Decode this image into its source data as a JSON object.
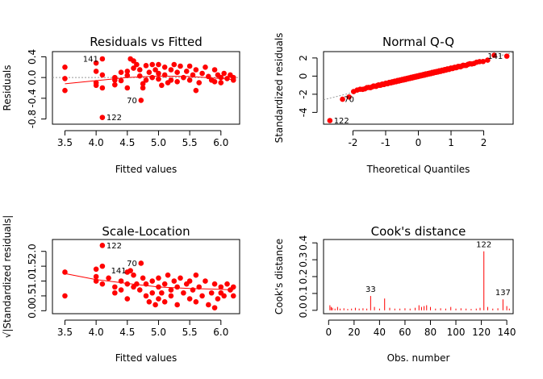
{
  "chart_data": [
    {
      "id": "resid",
      "type": "scatter",
      "title": "Residuals vs Fitted",
      "xlabel": "Fitted values",
      "ylabel": "Residuals",
      "xlim": [
        3.3,
        6.3
      ],
      "ylim": [
        -0.9,
        0.5
      ],
      "xticks": [
        "3.5",
        "4.0",
        "4.5",
        "5.0",
        "5.5",
        "6.0"
      ],
      "yticks": [
        "-0.8",
        "-0.4",
        "0.0",
        "0.4"
      ],
      "reference_line": 0,
      "smooth": [
        [
          3.5,
          -0.12
        ],
        [
          4.0,
          -0.06
        ],
        [
          4.5,
          0.0
        ],
        [
          5.0,
          0.03
        ],
        [
          5.5,
          0.02
        ],
        [
          6.0,
          -0.02
        ],
        [
          6.2,
          -0.04
        ]
      ],
      "points": [
        [
          3.5,
          0.2
        ],
        [
          3.5,
          -0.25
        ],
        [
          3.5,
          -0.02
        ],
        [
          4.0,
          0.28
        ],
        [
          4.0,
          0.12
        ],
        [
          4.0,
          -0.1
        ],
        [
          4.0,
          -0.15
        ],
        [
          4.1,
          0.05
        ],
        [
          4.1,
          -0.2
        ],
        [
          4.1,
          -0.77
        ],
        [
          4.1,
          0.36
        ],
        [
          4.3,
          0.0
        ],
        [
          4.3,
          -0.05
        ],
        [
          4.3,
          -0.14
        ],
        [
          4.4,
          0.1
        ],
        [
          4.4,
          -0.06
        ],
        [
          4.5,
          0.12
        ],
        [
          4.5,
          0.04
        ],
        [
          4.5,
          -0.2
        ],
        [
          4.55,
          0.36
        ],
        [
          4.6,
          0.32
        ],
        [
          4.6,
          0.18
        ],
        [
          4.65,
          0.25
        ],
        [
          4.7,
          0.15
        ],
        [
          4.7,
          0.03
        ],
        [
          4.75,
          -0.12
        ],
        [
          4.75,
          -0.2
        ],
        [
          4.8,
          0.23
        ],
        [
          4.8,
          -0.05
        ],
        [
          4.85,
          0.1
        ],
        [
          4.9,
          0.25
        ],
        [
          4.9,
          0.0
        ],
        [
          4.95,
          0.15
        ],
        [
          5.0,
          0.25
        ],
        [
          5.0,
          -0.03
        ],
        [
          5.0,
          0.08
        ],
        [
          5.05,
          -0.15
        ],
        [
          5.1,
          0.2
        ],
        [
          5.1,
          0.05
        ],
        [
          5.15,
          -0.1
        ],
        [
          5.2,
          0.15
        ],
        [
          5.2,
          -0.05
        ],
        [
          5.25,
          0.25
        ],
        [
          5.3,
          0.1
        ],
        [
          5.3,
          -0.08
        ],
        [
          5.35,
          0.22
        ],
        [
          5.4,
          0.0
        ],
        [
          5.45,
          0.12
        ],
        [
          5.5,
          0.22
        ],
        [
          5.5,
          -0.05
        ],
        [
          5.55,
          0.05
        ],
        [
          5.6,
          0.15
        ],
        [
          5.6,
          -0.25
        ],
        [
          5.65,
          -0.1
        ],
        [
          5.7,
          0.08
        ],
        [
          5.75,
          0.2
        ],
        [
          5.8,
          0.02
        ],
        [
          5.85,
          -0.05
        ],
        [
          5.9,
          0.15
        ],
        [
          5.9,
          -0.08
        ],
        [
          5.95,
          0.05
        ],
        [
          6.0,
          0.0
        ],
        [
          6.0,
          -0.1
        ],
        [
          6.05,
          0.08
        ],
        [
          6.1,
          -0.02
        ],
        [
          6.15,
          0.05
        ],
        [
          6.2,
          0.0
        ],
        [
          6.2,
          -0.05
        ],
        [
          4.72,
          -0.44
        ]
      ],
      "labels": [
        {
          "text": "141",
          "x": 4.1,
          "y": 0.36,
          "pos": "left"
        },
        {
          "text": "70",
          "x": 4.72,
          "y": -0.44,
          "pos": "left"
        },
        {
          "text": "122",
          "x": 4.1,
          "y": -0.77,
          "pos": "right"
        }
      ]
    },
    {
      "id": "qq",
      "type": "scatter",
      "title": "Normal Q-Q",
      "xlabel": "Theoretical Quantiles",
      "ylabel": "Standardized residuals",
      "xlim": [
        -2.9,
        2.9
      ],
      "ylim": [
        -5.3,
        2.7
      ],
      "xticks": [
        "-2",
        "-1",
        "0",
        "1",
        "2"
      ],
      "yticks": [
        "-4",
        "-2",
        "0",
        "2"
      ],
      "reference_line_coeffs": [
        0.0,
        0.9
      ],
      "n_points": 147,
      "extremes": [
        [
          -2.71,
          -4.9
        ],
        [
          -2.4,
          -2.55
        ],
        [
          -2.25,
          -2.3
        ],
        [
          2.37,
          2.3
        ],
        [
          2.71,
          2.2
        ]
      ],
      "labels": [
        {
          "text": "122",
          "x": -2.71,
          "y": -4.9,
          "pos": "right"
        },
        {
          "text": "70",
          "x": -2.4,
          "y": -2.55,
          "pos": "right"
        },
        {
          "text": "141",
          "x": 2.71,
          "y": 2.2,
          "pos": "left"
        }
      ]
    },
    {
      "id": "scale",
      "type": "scatter",
      "title": "Scale-Location",
      "xlabel": "Fitted values",
      "ylabel": "√|Standardized residuals|",
      "xlim": [
        3.3,
        6.3
      ],
      "ylim": [
        -0.1,
        2.4
      ],
      "xticks": [
        "3.5",
        "4.0",
        "4.5",
        "5.0",
        "5.5",
        "6.0"
      ],
      "yticks": [
        "0.0",
        "0.5",
        "1.0",
        "1.5",
        "2.0"
      ],
      "smooth": [
        [
          3.5,
          1.25
        ],
        [
          4.0,
          1.05
        ],
        [
          4.5,
          0.92
        ],
        [
          5.0,
          0.8
        ],
        [
          5.5,
          0.75
        ],
        [
          6.0,
          0.72
        ],
        [
          6.2,
          0.7
        ]
      ],
      "points": [
        [
          3.5,
          1.3
        ],
        [
          3.5,
          0.5
        ],
        [
          4.0,
          1.15
        ],
        [
          4.0,
          1.0
        ],
        [
          4.0,
          1.4
        ],
        [
          4.1,
          2.2
        ],
        [
          4.1,
          0.9
        ],
        [
          4.1,
          1.5
        ],
        [
          4.2,
          1.1
        ],
        [
          4.3,
          0.8
        ],
        [
          4.3,
          0.6
        ],
        [
          4.4,
          1.0
        ],
        [
          4.4,
          0.7
        ],
        [
          4.5,
          0.9
        ],
        [
          4.5,
          1.3
        ],
        [
          4.5,
          0.4
        ],
        [
          4.55,
          1.35
        ],
        [
          4.6,
          1.2
        ],
        [
          4.6,
          0.8
        ],
        [
          4.65,
          0.9
        ],
        [
          4.7,
          0.7
        ],
        [
          4.72,
          1.6
        ],
        [
          4.75,
          1.1
        ],
        [
          4.8,
          0.5
        ],
        [
          4.8,
          0.9
        ],
        [
          4.85,
          0.3
        ],
        [
          4.9,
          1.0
        ],
        [
          4.9,
          0.6
        ],
        [
          4.95,
          0.2
        ],
        [
          5.0,
          0.8
        ],
        [
          5.0,
          0.4
        ],
        [
          5.0,
          1.1
        ],
        [
          5.05,
          0.6
        ],
        [
          5.1,
          0.9
        ],
        [
          5.1,
          0.3
        ],
        [
          5.15,
          1.2
        ],
        [
          5.2,
          0.7
        ],
        [
          5.2,
          0.5
        ],
        [
          5.25,
          1.0
        ],
        [
          5.3,
          0.2
        ],
        [
          5.3,
          0.8
        ],
        [
          5.35,
          1.1
        ],
        [
          5.4,
          0.6
        ],
        [
          5.45,
          0.9
        ],
        [
          5.5,
          0.4
        ],
        [
          5.5,
          1.0
        ],
        [
          5.55,
          0.7
        ],
        [
          5.6,
          1.2
        ],
        [
          5.6,
          0.3
        ],
        [
          5.65,
          0.8
        ],
        [
          5.7,
          0.5
        ],
        [
          5.75,
          1.0
        ],
        [
          5.8,
          0.2
        ],
        [
          5.85,
          0.6
        ],
        [
          5.9,
          0.9
        ],
        [
          5.9,
          0.1
        ],
        [
          5.95,
          0.4
        ],
        [
          6.0,
          0.8
        ],
        [
          6.0,
          0.6
        ],
        [
          6.05,
          0.5
        ],
        [
          6.1,
          0.9
        ],
        [
          6.15,
          0.7
        ],
        [
          6.2,
          0.8
        ],
        [
          6.2,
          0.5
        ]
      ],
      "labels": [
        {
          "text": "122",
          "x": 4.1,
          "y": 2.2,
          "pos": "right"
        },
        {
          "text": "141",
          "x": 4.55,
          "y": 1.35,
          "pos": "left"
        },
        {
          "text": "70",
          "x": 4.72,
          "y": 1.6,
          "pos": "left"
        }
      ]
    },
    {
      "id": "cooks",
      "type": "bar",
      "title": "Cook's distance",
      "xlabel": "Obs. number",
      "ylabel": "Cook's distance",
      "xlim": [
        -4,
        145
      ],
      "ylim": [
        -0.02,
        0.42
      ],
      "xticks": [
        "0",
        "20",
        "40",
        "60",
        "80",
        "100",
        "120",
        "140"
      ],
      "yticks": [
        "0.0",
        "0.1",
        "0.2",
        "0.3",
        "0.4"
      ],
      "spikes": [
        [
          1,
          0.03
        ],
        [
          2,
          0.02
        ],
        [
          3,
          0.015
        ],
        [
          5,
          0.01
        ],
        [
          7,
          0.02
        ],
        [
          9,
          0.01
        ],
        [
          12,
          0.012
        ],
        [
          15,
          0.008
        ],
        [
          18,
          0.01
        ],
        [
          21,
          0.015
        ],
        [
          24,
          0.01
        ],
        [
          27,
          0.012
        ],
        [
          30,
          0.01
        ],
        [
          33,
          0.085
        ],
        [
          36,
          0.02
        ],
        [
          40,
          0.01
        ],
        [
          44,
          0.07
        ],
        [
          48,
          0.015
        ],
        [
          52,
          0.01
        ],
        [
          56,
          0.01
        ],
        [
          60,
          0.012
        ],
        [
          64,
          0.01
        ],
        [
          68,
          0.015
        ],
        [
          71,
          0.03
        ],
        [
          73,
          0.02
        ],
        [
          75,
          0.025
        ],
        [
          77,
          0.03
        ],
        [
          80,
          0.02
        ],
        [
          84,
          0.01
        ],
        [
          88,
          0.012
        ],
        [
          92,
          0.01
        ],
        [
          96,
          0.02
        ],
        [
          100,
          0.01
        ],
        [
          104,
          0.012
        ],
        [
          108,
          0.01
        ],
        [
          112,
          0.008
        ],
        [
          116,
          0.01
        ],
        [
          119,
          0.015
        ],
        [
          122,
          0.35
        ],
        [
          125,
          0.02
        ],
        [
          129,
          0.01
        ],
        [
          133,
          0.012
        ],
        [
          137,
          0.065
        ],
        [
          140,
          0.025
        ],
        [
          142,
          0.01
        ]
      ],
      "labels": [
        {
          "text": "33",
          "x": 33,
          "y": 0.085
        },
        {
          "text": "122",
          "x": 122,
          "y": 0.35
        },
        {
          "text": "137",
          "x": 137,
          "y": 0.065
        }
      ]
    }
  ],
  "colors": {
    "points": "#ff0000",
    "smooth": "#ff0000",
    "reference": "#999999",
    "spikes": "#ff0000",
    "axis": "#000000"
  }
}
